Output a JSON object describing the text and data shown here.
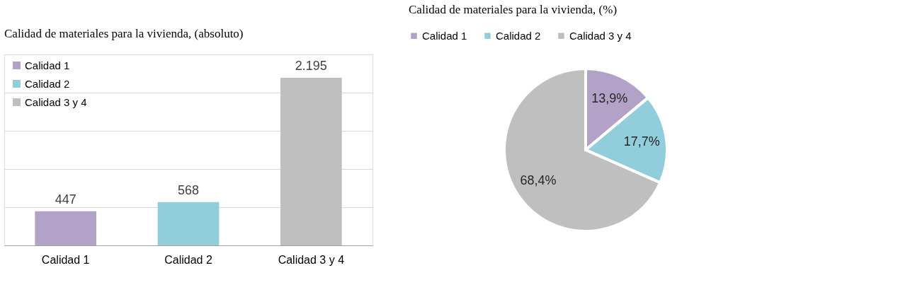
{
  "chart_data": [
    {
      "type": "bar",
      "title": "Calidad de materiales para la vivienda, (absoluto)",
      "categories": [
        "Calidad 1",
        "Calidad 2",
        "Calidad 3 y 4"
      ],
      "stacked": true,
      "series": [
        {
          "name": "Calidad 1",
          "color": "#b3a2c7",
          "values": [
            447,
            null,
            null
          ],
          "value_labels": [
            "447",
            null,
            null
          ]
        },
        {
          "name": "Calidad 2",
          "color": "#92cddc",
          "values": [
            null,
            568,
            null
          ],
          "value_labels": [
            null,
            "568",
            null
          ]
        },
        {
          "name": "Calidad 3 y 4",
          "color": "#bfbfbf",
          "values": [
            null,
            null,
            2195
          ],
          "value_labels": [
            null,
            null,
            "2.195"
          ]
        }
      ],
      "ylim": [
        0,
        2500
      ],
      "yticks": [
        {
          "value": 0,
          "label": null
        },
        {
          "value": 500,
          "label": null
        },
        {
          "value": 1000,
          "label": null
        },
        {
          "value": 1500,
          "label": null
        },
        {
          "value": 2000,
          "label": null
        },
        {
          "value": 2500,
          "label": null
        }
      ],
      "tick_labels": "x",
      "grid": "y",
      "legend": "top left"
    },
    {
      "type": "pie",
      "title": "Calidad de materiales para la vivienda, (%)",
      "categories": [
        "Calidad 1",
        "Calidad 2",
        "Calidad 3 y 4"
      ],
      "values": [
        13.9,
        17.7,
        68.4
      ],
      "colors": [
        "#b3a2c7",
        "#92cddc",
        "#bfbfbf"
      ],
      "value_labels": [
        "13,9%",
        "17,7%",
        "68,4%"
      ],
      "legend": "top"
    }
  ]
}
